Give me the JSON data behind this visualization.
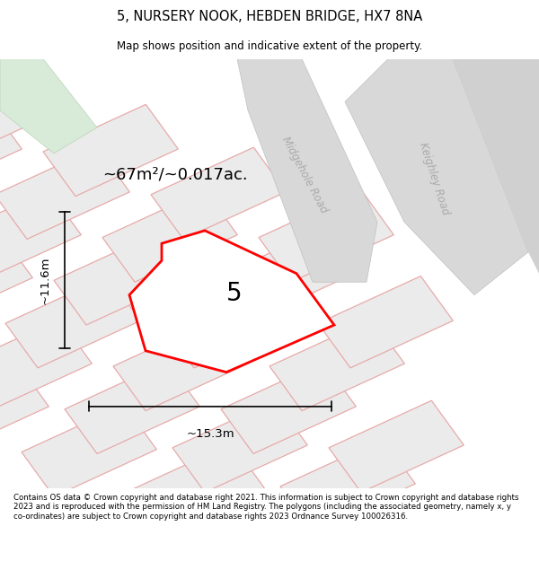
{
  "title": "5, NURSERY NOOK, HEBDEN BRIDGE, HX7 8NA",
  "subtitle": "Map shows position and indicative extent of the property.",
  "title_fontsize": 10.5,
  "subtitle_fontsize": 8.5,
  "bg_color": "#ffffff",
  "map_bg": "#f7f2f2",
  "footer_text": "Contains OS data © Crown copyright and database right 2021. This information is subject to Crown copyright and database rights 2023 and is reproduced with the permission of HM Land Registry. The polygons (including the associated geometry, namely x, y co-ordinates) are subject to Crown copyright and database rights 2023 Ordnance Survey 100026316.",
  "area_label": "~67m²/~0.017ac.",
  "property_label": "5",
  "width_label": "~15.3m",
  "height_label": "~11.6m",
  "road1_label": "Midgehole Road",
  "road2_label": "Keighley Road",
  "property_color": "#ff0000",
  "parcel_fill": "#ebebeb",
  "parcel_edge": "#e8aaaa",
  "road_fill": "#d8d8d8",
  "road_edge": "#c0c0c0",
  "green_fill": "#d8ead8",
  "map_xlim": [
    0,
    1
  ],
  "map_ylim": [
    0,
    1
  ]
}
